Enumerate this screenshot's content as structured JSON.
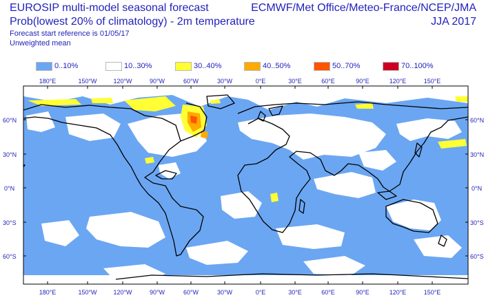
{
  "header": {
    "title_line1": "EUROSIP multi-model seasonal forecast",
    "title_line2": "Prob(lowest 20% of climatology) - 2m temperature",
    "start_reference": "Forecast start reference is 01/05/17",
    "weighting": "Unweighted mean",
    "centres": "ECMWF/Met Office/Meteo-France/NCEP/JMA",
    "season": "JJA 2017"
  },
  "legend": [
    {
      "label": "0..10%",
      "color": "#6ba6f2"
    },
    {
      "label": "10..30%",
      "color": "#ffffff"
    },
    {
      "label": "30..40%",
      "color": "#ffff33"
    },
    {
      "label": "40..50%",
      "color": "#ffaa00"
    },
    {
      "label": "50..70%",
      "color": "#ff5500"
    },
    {
      "label": "70..100%",
      "color": "#cc0022"
    }
  ],
  "map": {
    "background_category_color": "#6ba6f2",
    "coast_color": "#000000",
    "longitude_labels": [
      "180°E",
      "150°W",
      "120°W",
      "90°W",
      "60°W",
      "30°W",
      "0°E",
      "30°E",
      "60°E",
      "90°E",
      "120°E",
      "150°E"
    ],
    "latitude_labels_left": [
      "60°N",
      "30°N",
      "0°N",
      "30°S",
      "60°S"
    ],
    "latitude_labels_right": [
      "60°N",
      "30°N",
      "0°N",
      "30°S",
      "60°S"
    ]
  }
}
